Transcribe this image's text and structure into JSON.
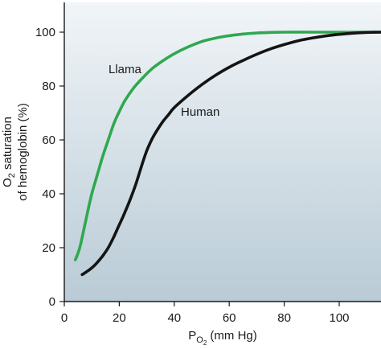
{
  "chart_data": {
    "type": "line",
    "xlabel": {
      "main": "P",
      "sub": "O",
      "subsub": "2",
      "rest": " (mm Hg)"
    },
    "ylabel": {
      "line1_main": "O",
      "line1_sub": "2",
      "line1_rest": " saturation",
      "line2": "of hemoglobin (%)"
    },
    "xlim": [
      0,
      117
    ],
    "ylim": [
      0,
      110
    ],
    "xticks": [
      0,
      20,
      40,
      60,
      80,
      100
    ],
    "yticks": [
      0,
      20,
      40,
      60,
      80,
      100
    ],
    "grid": false,
    "background_gradient": [
      "#f1f5f8",
      "#b9cbd6"
    ],
    "series": [
      {
        "name": "Llama",
        "color": "#2fa84f",
        "points": [
          [
            4,
            15.5
          ],
          [
            5,
            18
          ],
          [
            6,
            21.5
          ],
          [
            8,
            31
          ],
          [
            10,
            40
          ],
          [
            12,
            47
          ],
          [
            14,
            54
          ],
          [
            16,
            60
          ],
          [
            18,
            66
          ],
          [
            20,
            70.5
          ],
          [
            22,
            74.5
          ],
          [
            25,
            79
          ],
          [
            28,
            82.5
          ],
          [
            32,
            86.5
          ],
          [
            36,
            89.5
          ],
          [
            40,
            92
          ],
          [
            45,
            94.5
          ],
          [
            50,
            96.5
          ],
          [
            55,
            97.8
          ],
          [
            60,
            98.7
          ],
          [
            65,
            99.3
          ],
          [
            70,
            99.7
          ],
          [
            75,
            99.9
          ],
          [
            80,
            100
          ],
          [
            90,
            100
          ],
          [
            100,
            100
          ],
          [
            110,
            100
          ],
          [
            117,
            100
          ]
        ]
      },
      {
        "name": "Human",
        "color": "#141414",
        "points": [
          [
            6.5,
            10
          ],
          [
            8,
            11
          ],
          [
            10,
            12.5
          ],
          [
            12,
            14.5
          ],
          [
            14,
            17
          ],
          [
            16,
            20
          ],
          [
            18,
            24
          ],
          [
            20,
            28.5
          ],
          [
            22,
            33
          ],
          [
            24,
            38
          ],
          [
            26,
            43.5
          ],
          [
            28,
            50
          ],
          [
            30,
            56
          ],
          [
            32,
            60.5
          ],
          [
            34,
            64
          ],
          [
            36,
            67
          ],
          [
            38,
            69.5
          ],
          [
            40,
            72
          ],
          [
            45,
            76.5
          ],
          [
            50,
            80.5
          ],
          [
            55,
            84
          ],
          [
            60,
            87
          ],
          [
            65,
            89.5
          ],
          [
            70,
            91.8
          ],
          [
            75,
            93.8
          ],
          [
            80,
            95.4
          ],
          [
            85,
            96.8
          ],
          [
            90,
            97.8
          ],
          [
            95,
            98.6
          ],
          [
            100,
            99.2
          ],
          [
            105,
            99.6
          ],
          [
            110,
            99.9
          ],
          [
            115,
            100
          ],
          [
            117,
            100
          ]
        ]
      }
    ],
    "labels": [
      {
        "text": "Llama",
        "series": 0
      },
      {
        "text": "Human",
        "series": 1
      }
    ]
  }
}
